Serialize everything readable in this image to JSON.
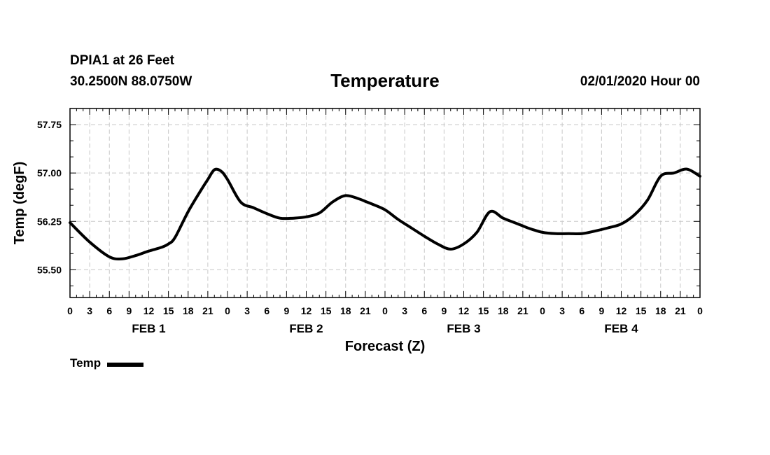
{
  "header": {
    "station": "DPIA1 at 26 Feet",
    "coordinates": "30.2500N 88.0750W",
    "title": "Temperature",
    "datetime": "02/01/2020 Hour 00"
  },
  "legend": {
    "label": "Temp",
    "color": "#000000"
  },
  "chart_data": {
    "type": "line",
    "title": "Temperature",
    "xlabel": "Forecast (Z)",
    "ylabel": "Temp (degF)",
    "xlim": [
      0,
      96
    ],
    "ylim": [
      55.07,
      58.0
    ],
    "grid": true,
    "legend_position": "bottom-left",
    "x_ticks": [
      0,
      3,
      6,
      9,
      12,
      15,
      18,
      21,
      24,
      27,
      30,
      33,
      36,
      39,
      42,
      45,
      48,
      51,
      54,
      57,
      60,
      63,
      66,
      69,
      72,
      75,
      78,
      81,
      84,
      87,
      90,
      93,
      96
    ],
    "x_tick_labels": [
      "0",
      "3",
      "6",
      "9",
      "12",
      "15",
      "18",
      "21",
      "0",
      "3",
      "6",
      "9",
      "12",
      "15",
      "18",
      "21",
      "0",
      "3",
      "6",
      "9",
      "12",
      "15",
      "18",
      "21",
      "0",
      "3",
      "6",
      "9",
      "12",
      "15",
      "18",
      "21",
      "0"
    ],
    "y_ticks": [
      55.5,
      56.25,
      57.0,
      57.75
    ],
    "y_tick_labels": [
      "55.50",
      "56.25",
      "57.00",
      "57.75"
    ],
    "day_labels": [
      {
        "label": "FEB 1",
        "x": 12
      },
      {
        "label": "FEB 2",
        "x": 36
      },
      {
        "label": "FEB 3",
        "x": 60
      },
      {
        "label": "FEB 4",
        "x": 84
      }
    ],
    "series": [
      {
        "name": "Temp",
        "color": "#000000",
        "x": [
          0,
          3,
          6,
          8,
          10,
          12,
          14,
          15,
          16,
          18,
          20,
          21,
          22,
          23,
          24,
          26,
          28,
          30,
          32,
          34,
          36,
          38,
          40,
          42,
          44,
          45,
          46,
          48,
          50,
          52,
          54,
          56,
          58,
          60,
          62,
          64,
          66,
          68,
          69,
          70,
          72,
          74,
          76,
          78,
          80,
          82,
          84,
          86,
          88,
          90,
          92,
          94,
          96
        ],
        "values": [
          56.23,
          55.93,
          55.7,
          55.67,
          55.72,
          55.79,
          55.85,
          55.9,
          56.0,
          56.4,
          56.74,
          56.9,
          57.05,
          57.03,
          56.9,
          56.55,
          56.46,
          56.37,
          56.3,
          56.3,
          56.32,
          56.38,
          56.55,
          56.65,
          56.6,
          56.56,
          56.52,
          56.43,
          56.28,
          56.15,
          56.02,
          55.9,
          55.82,
          55.9,
          56.08,
          56.4,
          56.3,
          56.22,
          56.18,
          56.14,
          56.08,
          56.06,
          56.06,
          56.06,
          56.1,
          56.15,
          56.21,
          56.35,
          56.58,
          56.95,
          57.0,
          57.06,
          56.95
        ]
      }
    ]
  }
}
